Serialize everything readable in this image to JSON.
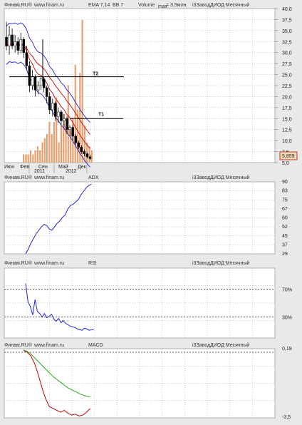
{
  "colors": {
    "ema": "#cc0000",
    "bb": "#2222cc",
    "volume": "#e8a070",
    "price": "#000000",
    "adx": "#2222cc",
    "rsi": "#2222cc",
    "macd": "#cc0000",
    "signal": "#22aa22",
    "panel_bg": "#ffffff",
    "page_bg": "#e9e9e9"
  },
  "panels": {
    "price": {
      "header": {
        "source": "Финам.RU®",
        "site": "www.finam.ru",
        "ema": "EMA 7,14",
        "bb": "BB 7",
        "volume": "Volume",
        "volume_sub": "max",
        "volume_val": "= 3,5млн.",
        "title": "i3ЗаводДИОД Месячный"
      },
      "y_ticks": [
        "40,0",
        "37,5",
        "35,0",
        "32,5",
        "30,0",
        "27,5",
        "25,0",
        "22,5",
        "20,0",
        "17,5",
        "15,0",
        "12,5",
        "10,0",
        "7,5",
        "5,0"
      ],
      "x_ticks": [
        "Июн",
        "Фев",
        "Сен",
        "Май",
        "Дек"
      ],
      "years": [
        "2011",
        "2012"
      ],
      "last_price": "5,859",
      "annotations": [
        "T2",
        "T1"
      ]
    },
    "adx": {
      "header": {
        "source": "Финам.RU®",
        "site": "www.finam.ru",
        "indicator": "ADX",
        "title": "i3ЗаводДИОД Месячный"
      },
      "y_ticks": [
        "90",
        "83",
        "75",
        "67",
        "60",
        "52",
        "45",
        "37",
        "29"
      ]
    },
    "rsi": {
      "header": {
        "source": "Финам.RU®",
        "site": "www.finam.ru",
        "indicator": "RSI",
        "title": "i3ЗаводДИОД Месячный"
      },
      "y_ticks": [
        "70%",
        "30%"
      ]
    },
    "macd": {
      "header": {
        "source": "Финам.RU®",
        "site": "www.finam.ru",
        "indicator": "MACD",
        "title": "i3ЗаводДИОД Месячный"
      },
      "y_ticks": [
        "0,19",
        "-3,5"
      ]
    }
  },
  "chart_data": [
    {
      "type": "candlestick",
      "title": "i3ЗаводДИОД Месячный",
      "ylim": [
        5,
        40
      ],
      "candles": [
        {
          "o": 33.5,
          "h": 37,
          "l": 30.5,
          "c": 31.5
        },
        {
          "o": 31.5,
          "h": 36,
          "l": 29.5,
          "c": 34
        },
        {
          "o": 34,
          "h": 35.5,
          "l": 30.8,
          "c": 31.5
        },
        {
          "o": 31.5,
          "h": 34,
          "l": 30,
          "c": 32.5
        },
        {
          "o": 32.5,
          "h": 33.5,
          "l": 29.5,
          "c": 30.5
        },
        {
          "o": 30.5,
          "h": 34.5,
          "l": 29.8,
          "c": 33
        },
        {
          "o": 33,
          "h": 33.5,
          "l": 28.8,
          "c": 30
        },
        {
          "o": 30,
          "h": 31.5,
          "l": 26,
          "c": 27
        },
        {
          "o": 27,
          "h": 28,
          "l": 21,
          "c": 22.5
        },
        {
          "o": 22.5,
          "h": 26,
          "l": 21.5,
          "c": 24.5
        },
        {
          "o": 24.5,
          "h": 25,
          "l": 20,
          "c": 21.5
        },
        {
          "o": 21.5,
          "h": 23.5,
          "l": 20.5,
          "c": 22.5
        },
        {
          "o": 22.5,
          "h": 24.5,
          "l": 21.5,
          "c": 24
        },
        {
          "o": 24,
          "h": 24.5,
          "l": 21,
          "c": 22
        },
        {
          "o": 22,
          "h": 22.5,
          "l": 18.5,
          "c": 20
        },
        {
          "o": 20,
          "h": 21,
          "l": 16,
          "c": 17
        },
        {
          "o": 17,
          "h": 19.5,
          "l": 15.5,
          "c": 18.5
        },
        {
          "o": 18.5,
          "h": 19,
          "l": 14.5,
          "c": 15.5
        },
        {
          "o": 15.5,
          "h": 17.5,
          "l": 14,
          "c": 16.5
        },
        {
          "o": 16.5,
          "h": 17,
          "l": 13.5,
          "c": 14.5
        },
        {
          "o": 14.5,
          "h": 16,
          "l": 13,
          "c": 15
        },
        {
          "o": 15,
          "h": 15.5,
          "l": 11.5,
          "c": 12.5
        },
        {
          "o": 12.5,
          "h": 13.5,
          "l": 11,
          "c": 13
        },
        {
          "o": 13,
          "h": 13.5,
          "l": 10,
          "c": 11
        },
        {
          "o": 11,
          "h": 11.5,
          "l": 9,
          "c": 9.5
        },
        {
          "o": 9.5,
          "h": 10,
          "l": 8,
          "c": 8.5
        },
        {
          "o": 8.5,
          "h": 9,
          "l": 7,
          "c": 7.5
        },
        {
          "o": 7.5,
          "h": 8,
          "l": 6.5,
          "c": 7
        },
        {
          "o": 7,
          "h": 7.3,
          "l": 6,
          "c": 6.3
        },
        {
          "o": 6.3,
          "h": 6.8,
          "l": 5.6,
          "c": 5.9
        }
      ],
      "volume": [
        0.2,
        0.2,
        0.2,
        0.3,
        0.2,
        0.3,
        0.4,
        0.3,
        0.5,
        0.6,
        0.7,
        1.0,
        0.7,
        1.0,
        1.6,
        0.5,
        0.9,
        1.2,
        0.9,
        1.9,
        0.8,
        1.1,
        2.4,
        1.3,
        2.2,
        3.5,
        0.9,
        0.5,
        0.4,
        0.3
      ],
      "levels": [
        {
          "name": "T2",
          "value": 24.5
        },
        {
          "name": "T1",
          "value": 15.0
        }
      ]
    },
    {
      "type": "line",
      "title": "ADX",
      "ylim": [
        29,
        90
      ],
      "values": [
        29,
        33,
        38,
        42,
        46,
        49,
        52,
        54,
        53,
        50,
        49,
        52,
        55,
        57,
        60,
        62,
        67,
        70,
        71,
        73,
        75,
        79,
        82,
        85,
        87,
        88
      ]
    },
    {
      "type": "line",
      "title": "RSI",
      "ylim": [
        0,
        100
      ],
      "guides": [
        70,
        30
      ],
      "values": [
        78,
        52,
        45,
        33,
        55,
        38,
        35,
        30,
        35,
        29,
        31,
        34,
        27,
        24,
        28,
        22,
        25,
        21,
        19,
        17,
        16,
        15,
        13,
        12,
        11,
        14,
        13,
        11,
        12,
        12
      ]
    },
    {
      "type": "line",
      "title": "MACD",
      "ylim": [
        -3.5,
        0.19
      ],
      "series": [
        {
          "name": "MACD",
          "values": [
            0.1,
            0,
            -0.2,
            -0.6,
            -1.2,
            -1.9,
            -2.5,
            -2.9,
            -3.0,
            -3.1,
            -3.2,
            -3.1,
            -3.25,
            -3.35,
            -3.3,
            -3.4,
            -3.35,
            -3.2,
            -3.0
          ]
        },
        {
          "name": "Signal",
          "values": [
            0.12,
            0.05,
            -0.1,
            -0.3,
            -0.5,
            -0.7,
            -0.9,
            -1.1,
            -1.3,
            -1.45,
            -1.6,
            -1.75,
            -1.9,
            -2.0,
            -2.1,
            -2.2,
            -2.28,
            -2.34,
            -2.38
          ]
        }
      ]
    }
  ]
}
